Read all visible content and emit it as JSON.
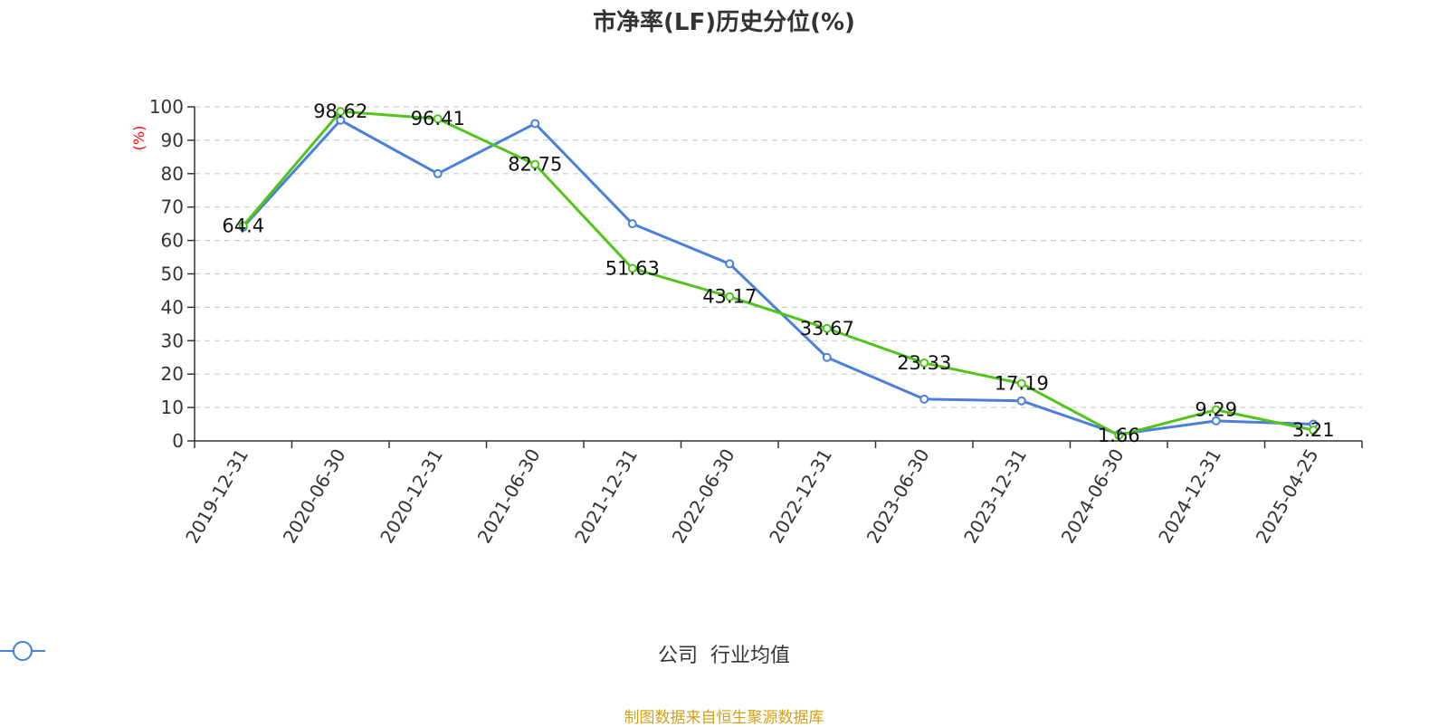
{
  "chart_data": {
    "type": "line",
    "title": "市净率(LF)历史分位(%)",
    "ylabel": "(%)",
    "ylim": [
      0,
      100
    ],
    "yticks": [
      0,
      10,
      20,
      30,
      40,
      50,
      60,
      70,
      80,
      90,
      100
    ],
    "categories": [
      "2019-12-31",
      "2020-06-30",
      "2020-12-31",
      "2021-06-30",
      "2021-12-31",
      "2022-06-30",
      "2022-12-31",
      "2023-06-30",
      "2023-12-31",
      "2024-06-30",
      "2024-12-31",
      "2025-04-25"
    ],
    "grid": true,
    "legend_position": "bottom-center",
    "series": [
      {
        "name": "公司",
        "color": "#52c41a",
        "values": [
          64.4,
          98.62,
          96.41,
          82.75,
          51.63,
          43.17,
          33.67,
          23.33,
          17.19,
          1.66,
          9.29,
          3.21
        ],
        "labels": [
          "64.4",
          "98.62",
          "96.41",
          "82.75",
          "51.63",
          "43.17",
          "33.67",
          "23.33",
          "17.19",
          "1.66",
          "9.29",
          "3.21"
        ]
      },
      {
        "name": "行业均值",
        "color": "#4a7fdd",
        "values": [
          64,
          96,
          80,
          95,
          65,
          53,
          25,
          12.5,
          12,
          2,
          6,
          5
        ]
      }
    ]
  },
  "source": "制图数据来自恒生聚源数据库"
}
